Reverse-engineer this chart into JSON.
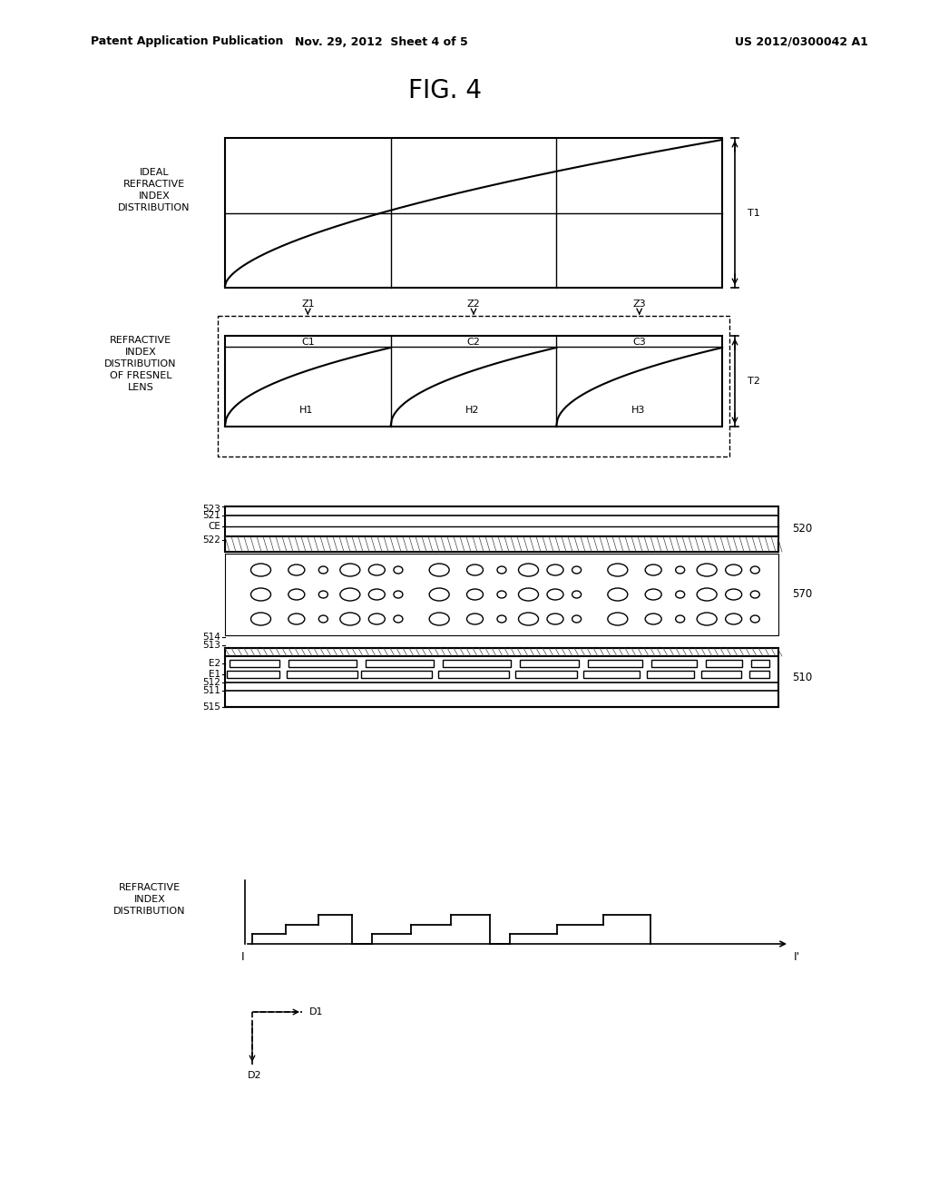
{
  "title": "FIG. 4",
  "header_left": "Patent Application Publication",
  "header_center": "Nov. 29, 2012  Sheet 4 of 5",
  "header_right": "US 2012/0300042 A1",
  "bg_color": "#ffffff",
  "line_color": "#000000"
}
